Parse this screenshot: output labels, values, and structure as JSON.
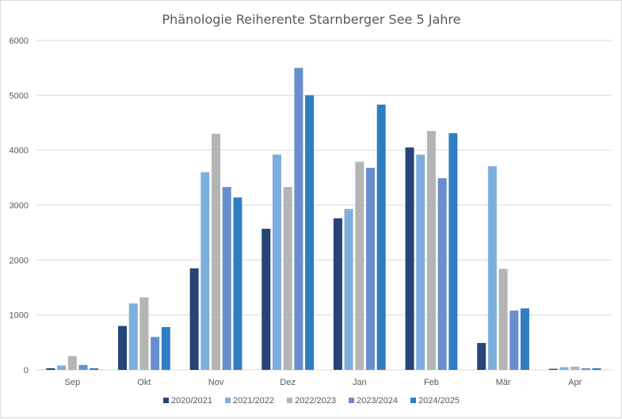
{
  "chart_data": {
    "type": "bar",
    "title": "Phänologie Reiherente Starnberger See  5 Jahre",
    "xlabel": "",
    "ylabel": "",
    "categories": [
      "Sep",
      "Okt",
      "Nov",
      "Dez",
      "Jan",
      "Feb",
      "Mär",
      "Apr"
    ],
    "ylim": [
      0,
      6000
    ],
    "yticks": [
      0,
      1000,
      2000,
      3000,
      4000,
      5000,
      6000
    ],
    "grid": true,
    "legend_position": "bottom",
    "series": [
      {
        "name": "2020/2021",
        "color": "#264478",
        "values": [
          30,
          800,
          1850,
          2570,
          2760,
          4050,
          490,
          20
        ]
      },
      {
        "name": "2021/2022",
        "color": "#7cafdd",
        "values": [
          80,
          1210,
          3600,
          3920,
          2930,
          3920,
          3710,
          50
        ]
      },
      {
        "name": "2022/2023",
        "color": "#b4b4b4",
        "values": [
          250,
          1320,
          4300,
          3330,
          3790,
          4350,
          1840,
          60
        ]
      },
      {
        "name": "2023/2024",
        "color": "#698ed0",
        "values": [
          90,
          600,
          3330,
          5500,
          3680,
          3490,
          1080,
          30
        ]
      },
      {
        "name": "2024/2025",
        "color": "#2f7ec4",
        "values": [
          30,
          780,
          3140,
          5000,
          4830,
          4310,
          1120,
          30
        ]
      }
    ]
  }
}
